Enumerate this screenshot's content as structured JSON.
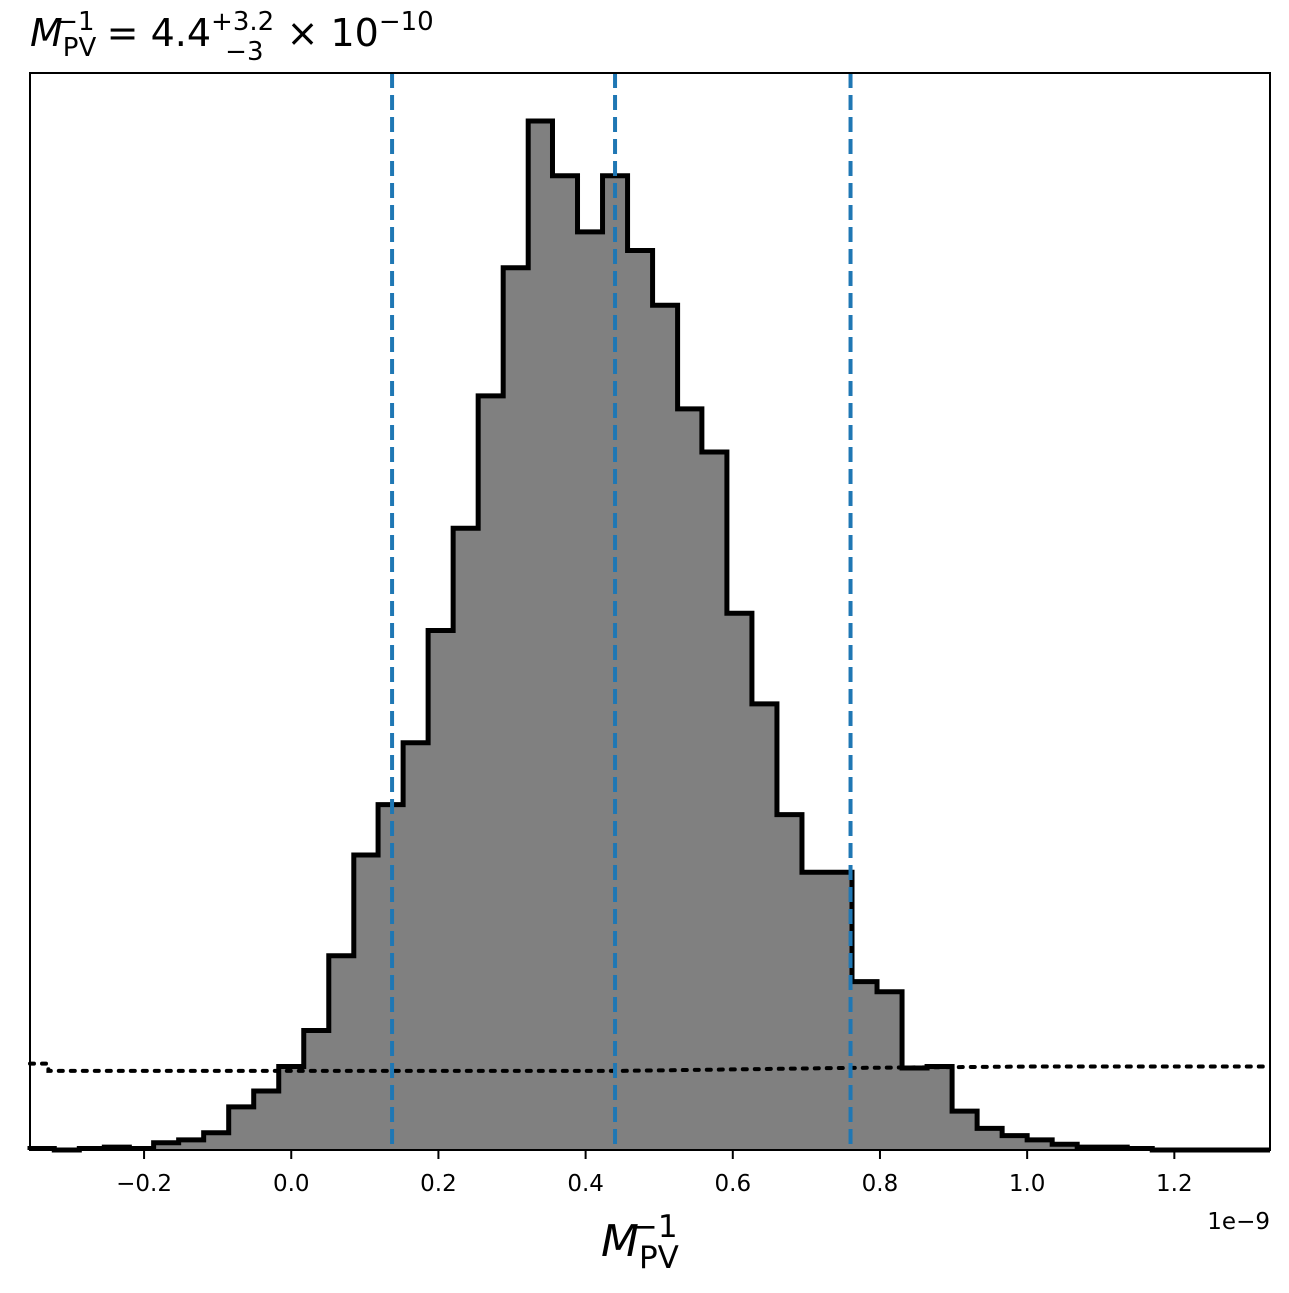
{
  "chart_data": {
    "type": "histogram",
    "title": {
      "symbol": "M",
      "sub": "PV",
      "sup": "−1",
      "equals": " = 4.4",
      "err_plus": "+3.2",
      "err_minus": "−3",
      "multiplier": " × 10",
      "exponent": "−10"
    },
    "xlabel": {
      "symbol": "M",
      "sub": "PV",
      "sup": "−1"
    },
    "x_offset_label": "1e−9",
    "xlim": [
      -0.355,
      1.33
    ],
    "ylim": [
      0,
      0.0715
    ],
    "x_ticks": [
      -0.2,
      0.0,
      0.2,
      0.4,
      0.6,
      0.8,
      1.0,
      1.2
    ],
    "x_tick_labels": [
      "−0.2",
      "0.0",
      "0.2",
      "0.4",
      "0.6",
      "0.8",
      "1.0",
      "1.2"
    ],
    "bin_edges": [
      -0.355,
      -0.322,
      -0.288,
      -0.254,
      -0.22,
      -0.187,
      -0.153,
      -0.119,
      -0.085,
      -0.051,
      -0.017,
      0.017,
      0.051,
      0.085,
      0.118,
      0.152,
      0.186,
      0.22,
      0.254,
      0.288,
      0.322,
      0.355,
      0.389,
      0.423,
      0.457,
      0.491,
      0.525,
      0.558,
      0.592,
      0.626,
      0.66,
      0.694,
      0.728,
      0.762,
      0.796,
      0.83,
      0.864,
      0.898,
      0.932,
      0.966,
      1.0,
      1.034,
      1.068,
      1.102,
      1.136,
      1.17,
      1.204,
      1.238,
      1.272,
      1.306,
      1.33
    ],
    "density": [
      0.0001,
      0.0,
      0.0001,
      0.0002,
      0.0001,
      0.0005,
      0.0007,
      0.0012,
      0.003,
      0.0041,
      0.0058,
      0.0083,
      0.0135,
      0.0205,
      0.024,
      0.0283,
      0.0361,
      0.0432,
      0.0524,
      0.0613,
      0.0715,
      0.0677,
      0.0638,
      0.0677,
      0.0625,
      0.0587,
      0.0515,
      0.0485,
      0.0373,
      0.031,
      0.0233,
      0.0193,
      0.0193,
      0.0117,
      0.011,
      0.0057,
      0.0058,
      0.0027,
      0.0015,
      0.001,
      0.0007,
      0.0004,
      0.0002,
      0.0002,
      0.0001,
      0.0,
      0.0,
      0.0,
      0.0,
      0.0
    ],
    "fill_color": "#808080",
    "edge_color": "#000000",
    "quantile_lines": {
      "values": [
        0.137,
        0.44,
        0.76
      ],
      "color": "#1f77b4",
      "style": "dashed"
    },
    "prior_line": {
      "style": "dotted",
      "color": "#000000",
      "x": [
        -0.355,
        -0.33,
        -0.33,
        0.0,
        0.45,
        0.75,
        1.0,
        1.33
      ],
      "y": [
        0.006,
        0.006,
        0.0055,
        0.0055,
        0.0055,
        0.0057,
        0.0058,
        0.0058
      ]
    },
    "grid": false,
    "legend": "none"
  }
}
